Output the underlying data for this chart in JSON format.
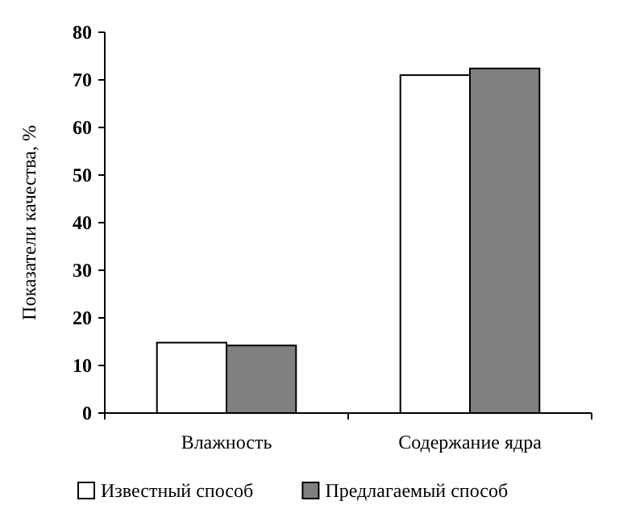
{
  "chart_data": {
    "type": "bar",
    "ylabel": "Показатели качества, %",
    "categories": [
      "Влажность",
      "Содержание ядра"
    ],
    "series": [
      {
        "name": "Известный способ",
        "color": "#ffffff",
        "values": [
          14.8,
          71.0
        ]
      },
      {
        "name": "Предлагаемый способ",
        "color": "#808080",
        "values": [
          14.2,
          72.4
        ]
      }
    ],
    "ylim": [
      0,
      80
    ],
    "yticks": [
      0,
      10,
      20,
      30,
      40,
      50,
      60,
      70,
      80
    ],
    "grid": false,
    "legend": "bottom"
  }
}
